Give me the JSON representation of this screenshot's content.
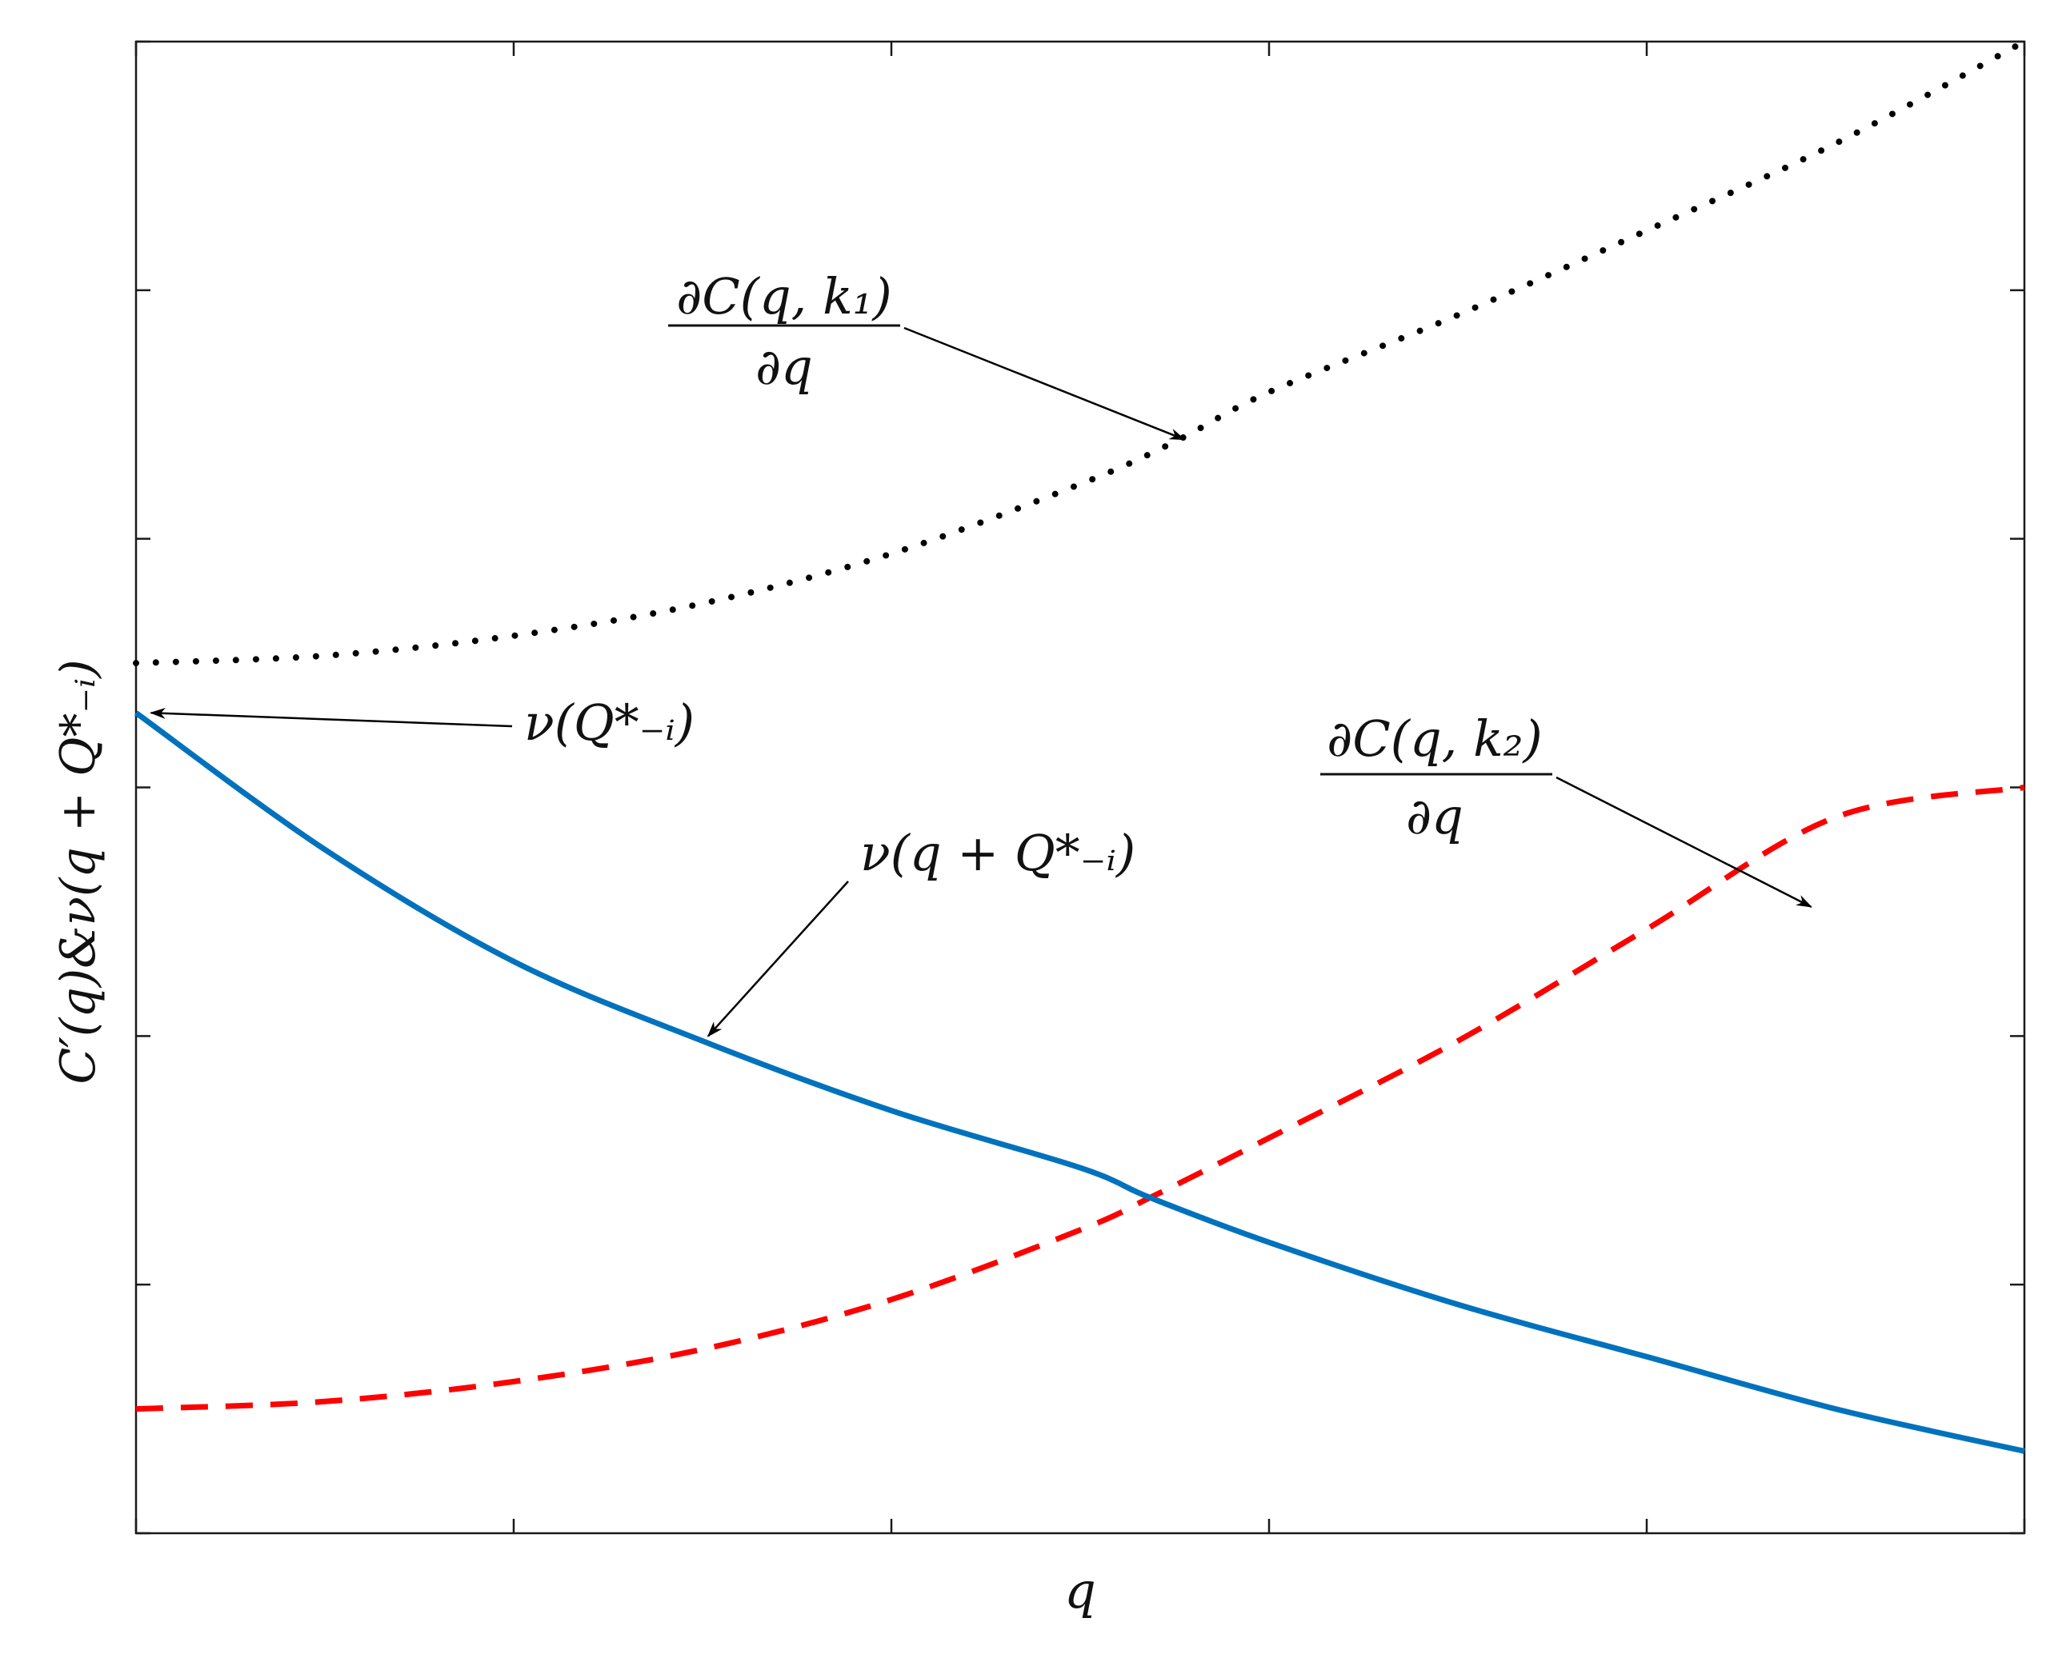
{
  "chart_data": {
    "type": "line",
    "xlabel": "q",
    "ylabel": "C′(q)&ν(q + Q*₋ᵢ)",
    "xlim": [
      0,
      1
    ],
    "ylim": [
      0,
      6
    ],
    "x_ticks": [
      0,
      0.2,
      0.4,
      0.6,
      0.8,
      1
    ],
    "y_ticks": [
      0,
      1,
      2,
      3,
      4,
      5,
      6
    ],
    "tick_labels_shown": false,
    "grid": false,
    "legend": "none",
    "series": [
      {
        "key": "dotted",
        "style": "dotted",
        "color": "#000000",
        "x": [
          0,
          0.1,
          0.2,
          0.3,
          0.4,
          0.5,
          0.55,
          0.6,
          0.7,
          0.8,
          0.9,
          1.0
        ],
        "y": [
          3.5,
          3.53,
          3.61,
          3.74,
          3.94,
          4.22,
          4.39,
          4.59,
          4.9,
          5.24,
          5.59,
          6.0
        ]
      },
      {
        "key": "dashed",
        "style": "dashed",
        "color": "#ff0000",
        "x": [
          0,
          0.1,
          0.2,
          0.3,
          0.4,
          0.5,
          0.537,
          0.6,
          0.7,
          0.8,
          0.9,
          1.0
        ],
        "y": [
          0.5,
          0.53,
          0.61,
          0.74,
          0.94,
          1.22,
          1.35,
          1.59,
          1.98,
          2.43,
          2.88,
          3.0
        ]
      },
      {
        "key": "solid",
        "style": "solid",
        "color": "#0072bd",
        "x": [
          0,
          0.1,
          0.2,
          0.3,
          0.4,
          0.5,
          0.537,
          0.6,
          0.7,
          0.8,
          0.9,
          1.0
        ],
        "y": [
          3.3,
          2.75,
          2.3,
          1.98,
          1.7,
          1.47,
          1.35,
          1.17,
          0.92,
          0.71,
          0.5,
          0.33
        ]
      }
    ],
    "annotations": [
      {
        "key": "dotted_label",
        "numerator": "∂C(q, k₁)",
        "denominator": "∂q",
        "points_to": [
          0.555,
          4.4
        ]
      },
      {
        "key": "dashed_label",
        "numerator": "∂C(q, k₂)",
        "denominator": "∂q",
        "points_to": [
          0.887,
          2.52
        ]
      },
      {
        "key": "solid_label",
        "text": "ν(q + Q*₋ᵢ)",
        "points_to": [
          0.303,
          2.0
        ]
      },
      {
        "key": "intercept_label",
        "text": "ν(Q*₋ᵢ)",
        "points_to": [
          0.008,
          3.3
        ]
      }
    ]
  }
}
